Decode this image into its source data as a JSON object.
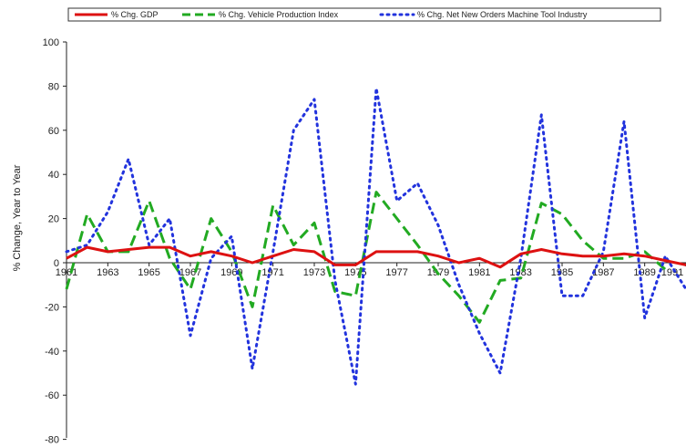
{
  "chart_data": {
    "type": "line",
    "title": "",
    "xlabel": "",
    "ylabel": "% Change, Year to Year",
    "ylim": [
      -80,
      100
    ],
    "xlim": [
      1961,
      1991
    ],
    "yticks": [
      100,
      80,
      60,
      40,
      20,
      0,
      -20,
      -40,
      -60,
      -80
    ],
    "ytick_labels": [
      "100",
      "80",
      "60",
      "40",
      "20",
      "0",
      "-20",
      "-40",
      "-60",
      "-80"
    ],
    "xticks": [
      1961,
      1963,
      1965,
      1967,
      1969,
      1971,
      1973,
      1975,
      1977,
      1979,
      1981,
      1983,
      1985,
      1987,
      1989,
      1991
    ],
    "xtick_labels": [
      "1961",
      "1963",
      "1965",
      "1967",
      "1969",
      "1971",
      "1973",
      "1975",
      "1977",
      "1979",
      "1981",
      "1983",
      "1985",
      "1987",
      "1989",
      "1991"
    ],
    "grid": false,
    "legend_position": "top",
    "series": [
      {
        "name": "% Chg. GDP",
        "color": "#dd1111",
        "style": "solid",
        "x": [
          1961,
          1962,
          1963,
          1964,
          1965,
          1966,
          1967,
          1968,
          1969,
          1970,
          1971,
          1972,
          1973,
          1974,
          1975,
          1976,
          1977,
          1978,
          1979,
          1980,
          1981,
          1982,
          1983,
          1984,
          1985,
          1986,
          1987,
          1988,
          1989,
          1990,
          1991
        ],
        "values": [
          2,
          7,
          5,
          6,
          7,
          7,
          3,
          5,
          3,
          0,
          3,
          6,
          5,
          -1,
          -1,
          5,
          5,
          5,
          3,
          0,
          2,
          -2,
          4,
          6,
          4,
          3,
          3,
          4,
          3,
          1,
          -1
        ]
      },
      {
        "name": "% Chg. Vehicle Production Index",
        "color": "#22aa22",
        "style": "dashed",
        "x": [
          1961,
          1962,
          1963,
          1964,
          1965,
          1966,
          1967,
          1968,
          1969,
          1970,
          1971,
          1972,
          1973,
          1974,
          1975,
          1976,
          1977,
          1978,
          1979,
          1980,
          1981,
          1982,
          1983,
          1984,
          1985,
          1986,
          1987,
          1988,
          1989,
          1990
        ],
        "values": [
          -12,
          22,
          5,
          5,
          28,
          2,
          -12,
          20,
          5,
          -20,
          26,
          8,
          18,
          -13,
          -15,
          32,
          20,
          8,
          -5,
          -15,
          -27,
          -8,
          -7,
          27,
          22,
          10,
          2,
          2,
          5,
          -3
        ]
      },
      {
        "name": "% Chg. Net New Orders Machine Tool Industry",
        "color": "#2233dd",
        "style": "dotted",
        "x": [
          1961,
          1962,
          1963,
          1964,
          1965,
          1966,
          1967,
          1968,
          1969,
          1970,
          1971,
          1972,
          1973,
          1974,
          1975,
          1976,
          1977,
          1978,
          1979,
          1980,
          1981,
          1982,
          1983,
          1984,
          1985,
          1986,
          1987,
          1988,
          1989,
          1990,
          1991
        ],
        "values": [
          5,
          8,
          23,
          47,
          8,
          20,
          -33,
          2,
          12,
          -48,
          5,
          60,
          74,
          -8,
          -55,
          79,
          28,
          36,
          17,
          -10,
          -32,
          -50,
          2,
          67,
          -15,
          -15,
          5,
          64,
          -25,
          3,
          -12
        ]
      }
    ]
  }
}
